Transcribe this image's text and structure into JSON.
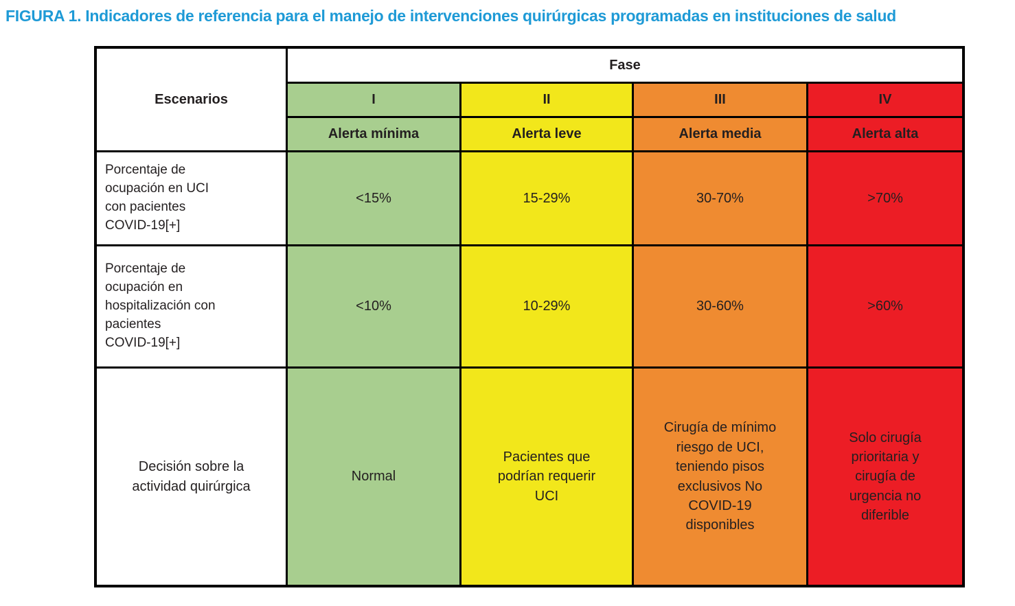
{
  "figure": {
    "title": "FIGURA 1. Indicadores de referencia para el manejo de intervenciones quirúrgicas programadas en instituciones de salud"
  },
  "colors": {
    "title": "#1e9ad6",
    "text": "#231f20",
    "border": "#000000",
    "header_bg": "#ffffff",
    "phase_i": "#a8ce8f",
    "phase_ii": "#f2e71b",
    "phase_iii": "#ef8b31",
    "phase_iv": "#ec1d25"
  },
  "table": {
    "corner_header": "Escenarios",
    "group_header": "Fase",
    "phases": [
      {
        "numeral": "I",
        "alert": "Alerta mínima"
      },
      {
        "numeral": "II",
        "alert": "Alerta leve"
      },
      {
        "numeral": "III",
        "alert": "Alerta media"
      },
      {
        "numeral": "IV",
        "alert": "Alerta alta"
      }
    ],
    "rows": [
      {
        "label": "Porcentaje de\nocupación en UCI\ncon pacientes\nCOVID-19[+]",
        "values": [
          "<15%",
          "15-29%",
          "30-70%",
          ">70%"
        ]
      },
      {
        "label": "Porcentaje de\nocupación en\nhospitalización con\npacientes\nCOVID-19[+]",
        "values": [
          "<10%",
          "10-29%",
          "30-60%",
          ">60%"
        ]
      },
      {
        "label": "Decisión sobre la\nactividad quirúrgica",
        "values": [
          "Normal",
          "Pacientes que\npodrían requerir\nUCI",
          "Cirugía de mínimo\nriesgo de UCI,\nteniendo pisos\nexclusivos No\nCOVID-19\ndisponibles",
          "Solo cirugía\nprioritaria y\ncirugía de\nurgencia no\ndiferible"
        ]
      }
    ]
  }
}
